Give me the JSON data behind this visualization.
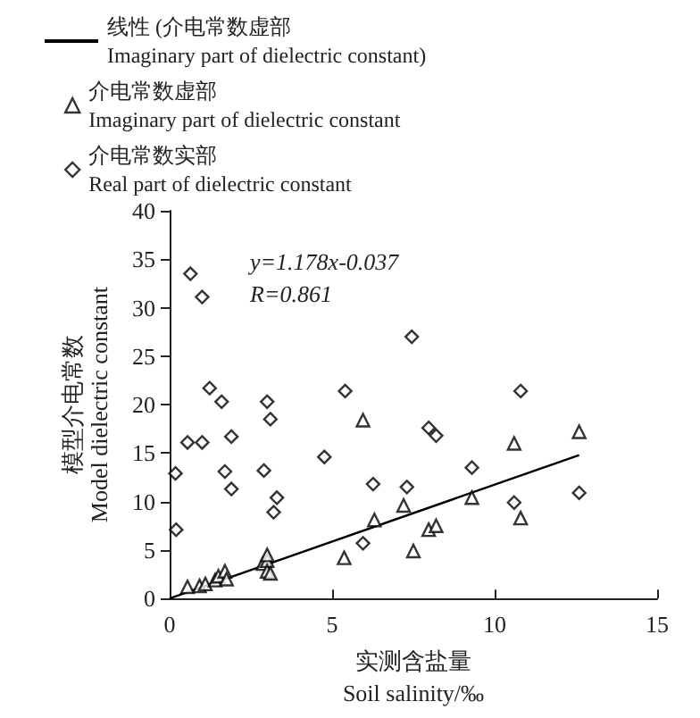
{
  "chart_data": {
    "type": "scatter",
    "xlabel": "实测含盐量\nSoil salinity/‰",
    "ylabel": "模型介电常数\nModel dielectric constant",
    "xlim": [
      0,
      15
    ],
    "ylim": [
      0,
      40
    ],
    "xticks": [
      0,
      5,
      10,
      15
    ],
    "yticks": [
      0,
      5,
      10,
      15,
      20,
      25,
      30,
      35,
      40
    ],
    "grid": false,
    "legend": "top",
    "annotations": [
      "y=1.178x-0.037",
      "R=0.861"
    ],
    "series": [
      {
        "name": "线性 (介电常数虚部\nImaginary part of dielectric constant)",
        "type": "line",
        "color": "#000000",
        "marker": "none",
        "line_style": "solid",
        "x": [
          0,
          12.6
        ],
        "values": [
          0,
          14.8
        ]
      },
      {
        "name": "介电常数虚部\nImaginary part of dielectric constant",
        "color": "#000000",
        "marker": "triangle",
        "x": [
          10.6,
          12.6,
          9.3,
          10.8,
          7.97,
          8.2,
          7.5,
          5.95,
          6.3,
          7.2,
          5.37,
          0.55,
          0.92,
          1.1,
          1.4,
          1.5,
          1.7,
          1.75,
          2.87,
          3.0,
          3.0,
          3.1,
          3.0
        ],
        "values": [
          16.0,
          17.2,
          10.4,
          8.3,
          7.1,
          7.5,
          4.9,
          18.4,
          8.1,
          9.6,
          4.2,
          1.2,
          1.3,
          1.5,
          1.9,
          2.3,
          2.8,
          2.0,
          3.6,
          3.9,
          2.8,
          2.6,
          4.5
        ]
      },
      {
        "name": "介电常数实部\nReal part of dielectric constant",
        "color": "#000000",
        "marker": "diamond",
        "x": [
          0.64,
          1.0,
          1.23,
          1.6,
          3.0,
          3.1,
          1.9,
          0.55,
          1.0,
          0.18,
          1.7,
          2.9,
          1.9,
          3.3,
          3.2,
          0.2,
          4.76,
          5.4,
          7.45,
          6.26,
          7.3,
          7.97,
          8.2,
          5.95,
          10.8,
          9.3,
          10.6,
          12.6
        ],
        "values": [
          33.5,
          31.1,
          21.7,
          20.3,
          20.3,
          18.5,
          16.7,
          16.1,
          16.1,
          12.9,
          13.1,
          13.2,
          11.3,
          10.4,
          8.9,
          7.1,
          14.6,
          21.4,
          27.0,
          11.8,
          11.5,
          17.6,
          16.8,
          5.7,
          21.4,
          13.5,
          9.9,
          10.9
        ]
      }
    ]
  }
}
